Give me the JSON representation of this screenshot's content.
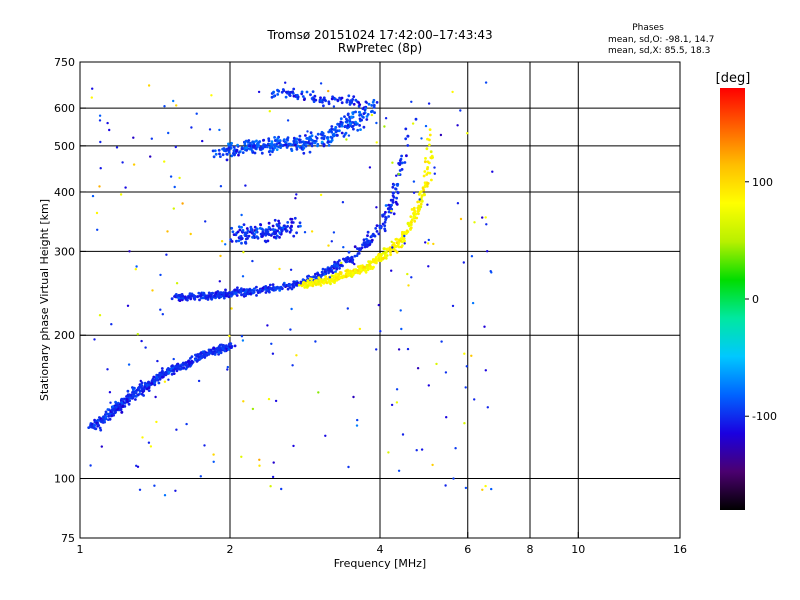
{
  "chart_data": {
    "type": "scatter",
    "title_line1": "Tromsø 20151024 17:42:00–17:43:43",
    "title_line2": "RwPretec (8p)",
    "xlabel": "Frequency [MHz]",
    "ylabel": "Stationary phase Virtual Height [km]",
    "xscale": "log2",
    "yscale": "log",
    "xlim": [
      1,
      16
    ],
    "ylim": [
      75,
      750
    ],
    "x_ticks": [
      1,
      2,
      4,
      6,
      8,
      10,
      16
    ],
    "x_grid": [
      2,
      4,
      6,
      8,
      10
    ],
    "y_ticks": [
      75,
      100,
      200,
      300,
      400,
      500,
      600,
      750
    ],
    "y_grid": [
      100,
      200,
      300,
      400,
      500,
      600
    ],
    "stats": {
      "title": "Phases",
      "line_o": "mean, sd,O: -98.1, 14.7",
      "line_x": "mean, sd,X:  85.5, 18.3"
    },
    "colorbar": {
      "label": "[deg]",
      "range": [
        -180,
        180
      ],
      "ticks": [
        100,
        0,
        -100
      ],
      "colors": [
        "#000000",
        "#4b0070",
        "#1a00e0",
        "#0064ff",
        "#00c8ff",
        "#00e8a0",
        "#00dd00",
        "#b8f000",
        "#ffff00",
        "#ffbe00",
        "#ff6000",
        "#ff0000"
      ]
    },
    "series": [
      {
        "kind": "o-trace",
        "phase": -100,
        "x": [
          1.05,
          1.1,
          1.15,
          1.2,
          1.3,
          1.4,
          1.5,
          1.6,
          1.7,
          1.8,
          1.9,
          2.0
        ],
        "y": [
          128,
          132,
          137,
          142,
          152,
          160,
          168,
          172,
          178,
          183,
          186,
          189
        ]
      },
      {
        "kind": "o-trace",
        "phase": -100,
        "x": [
          1.55,
          1.8,
          2.0,
          2.3,
          2.6,
          2.9,
          3.2,
          3.5,
          3.8,
          4.0,
          4.2,
          4.35,
          4.45,
          4.55,
          4.6
        ],
        "y": [
          240,
          242,
          245,
          248,
          253,
          262,
          275,
          292,
          315,
          340,
          370,
          410,
          460,
          520,
          580
        ]
      },
      {
        "kind": "x-trace",
        "phase": 85,
        "x": [
          2.8,
          3.2,
          3.5,
          3.8,
          4.1,
          4.4,
          4.6,
          4.8,
          4.95,
          5.05,
          5.1
        ],
        "y": [
          255,
          262,
          270,
          280,
          295,
          315,
          340,
          375,
          420,
          480,
          540
        ]
      },
      {
        "kind": "f-cluster",
        "phase": -100,
        "x": [
          2.05,
          2.2,
          2.35,
          2.5,
          2.7
        ],
        "y": [
          320,
          330,
          325,
          335,
          340
        ]
      },
      {
        "kind": "f2-cluster",
        "phase": -90,
        "x": [
          1.9,
          2.1,
          2.3,
          2.5,
          2.7,
          2.9,
          3.1,
          3.3,
          3.5,
          3.7,
          3.9
        ],
        "y": [
          480,
          495,
          500,
          505,
          500,
          510,
          520,
          540,
          560,
          585,
          610
        ]
      },
      {
        "kind": "top-cluster",
        "phase": -100,
        "x": [
          2.45,
          2.55,
          2.65,
          2.8,
          3.0,
          3.2,
          3.4,
          3.6
        ],
        "y": [
          640,
          650,
          645,
          640,
          620,
          625,
          630,
          615
        ]
      }
    ]
  }
}
